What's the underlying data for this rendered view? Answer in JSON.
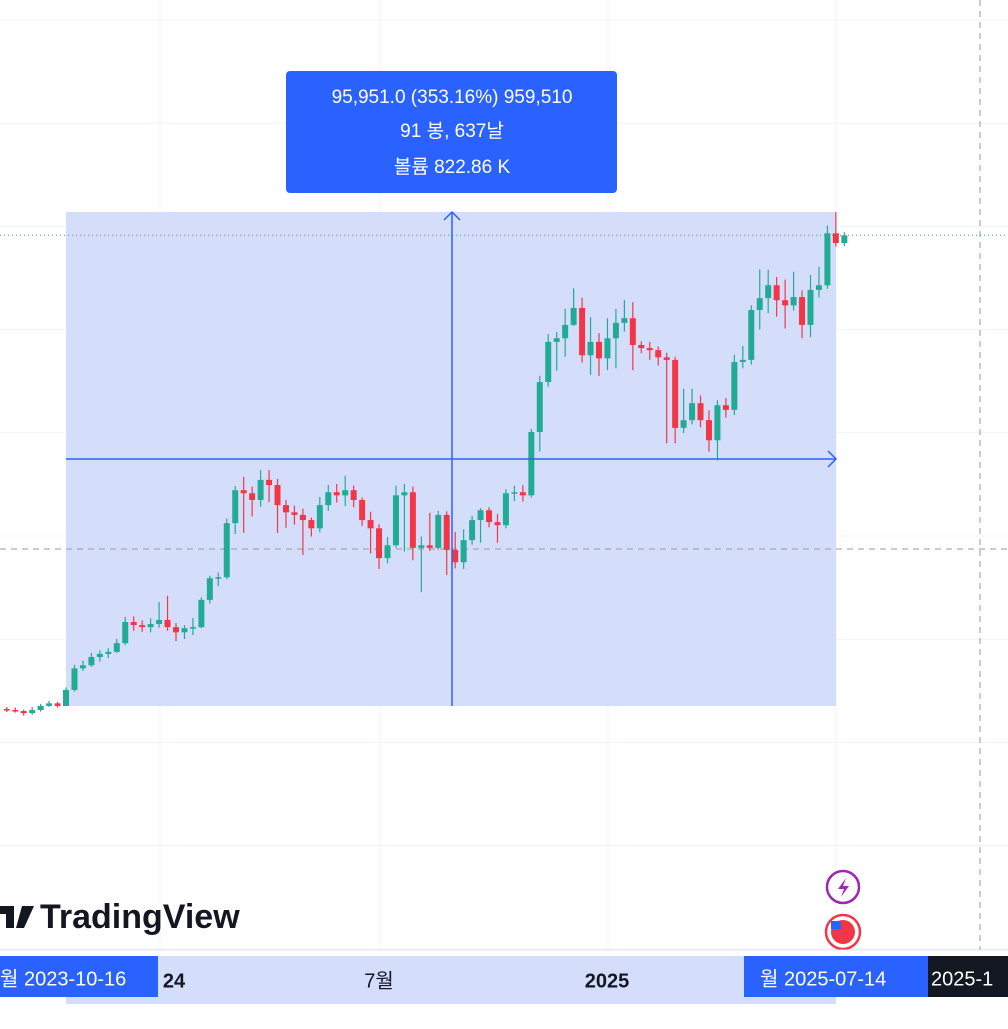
{
  "chart_data": {
    "type": "candlestick",
    "open": [
      26600,
      26400,
      26200,
      25800,
      26400,
      27200,
      27700,
      27200,
      30300,
      34500,
      35100,
      36700,
      37300,
      37700,
      39400,
      43500,
      42900,
      42500,
      43100,
      43900,
      42500,
      41500,
      42300,
      42500,
      47800,
      52000,
      52200,
      62700,
      69100,
      68500,
      67200,
      71100,
      70100,
      66200,
      64800,
      64300,
      63300,
      61700,
      66200,
      68700,
      68100,
      69100,
      67200,
      63300,
      61700,
      55900,
      58400,
      68100,
      68700,
      57900,
      58400,
      57900,
      64300,
      57500,
      55100,
      59400,
      63300,
      65200,
      62900,
      62300,
      68500,
      68700,
      68100,
      80400,
      90100,
      97900,
      98600,
      101200,
      104500,
      95300,
      97900,
      94700,
      98600,
      101600,
      102500,
      97300,
      96700,
      96300,
      94900,
      94400,
      81200,
      82700,
      86000,
      82700,
      78800,
      85600,
      84700,
      94000,
      94400,
      104100,
      106400,
      108900,
      106000,
      105000,
      106600,
      101200,
      108000,
      108900,
      119000,
      117100
    ],
    "high": [
      27000,
      26900,
      26500,
      27000,
      27600,
      28200,
      28000,
      30800,
      35200,
      36000,
      37500,
      38000,
      38400,
      40200,
      44500,
      44600,
      43800,
      44200,
      47400,
      48600,
      43300,
      42900,
      44300,
      48300,
      52500,
      53100,
      63600,
      69900,
      71700,
      69800,
      73000,
      73000,
      71300,
      67200,
      66100,
      65500,
      63800,
      67800,
      70100,
      70300,
      71900,
      70000,
      67700,
      64900,
      62500,
      60000,
      70000,
      70300,
      69800,
      60100,
      64700,
      65100,
      65000,
      61000,
      61500,
      64100,
      65600,
      65800,
      64500,
      69300,
      70000,
      70100,
      81000,
      91300,
      99400,
      99800,
      104300,
      108300,
      106500,
      102700,
      99600,
      102500,
      104300,
      106000,
      105600,
      98000,
      97900,
      97000,
      95800,
      95000,
      88800,
      88800,
      87500,
      84600,
      86600,
      87000,
      95400,
      97100,
      105000,
      112000,
      111900,
      110500,
      110000,
      111500,
      107900,
      110900,
      112500,
      120500,
      123100,
      119200
    ],
    "low": [
      26000,
      25900,
      25300,
      25500,
      26100,
      27000,
      26900,
      27170,
      30000,
      34000,
      34800,
      35800,
      36500,
      37500,
      39000,
      41800,
      41600,
      41500,
      42400,
      41800,
      39800,
      40200,
      41000,
      42300,
      47100,
      50500,
      51800,
      60600,
      60800,
      64000,
      65900,
      66800,
      60800,
      61800,
      62400,
      56500,
      60100,
      60900,
      65100,
      66700,
      66000,
      65800,
      62200,
      56800,
      53800,
      54900,
      57900,
      57200,
      55500,
      49300,
      57300,
      57500,
      52600,
      53900,
      53800,
      58500,
      58900,
      61900,
      58900,
      61700,
      67000,
      66900,
      67700,
      76600,
      89200,
      92300,
      95000,
      101000,
      93900,
      91500,
      91300,
      92400,
      92800,
      99900,
      92400,
      95700,
      94400,
      93300,
      78200,
      78200,
      80200,
      81900,
      81300,
      76600,
      74900,
      83200,
      83700,
      92800,
      93500,
      100300,
      103500,
      102800,
      100500,
      104000,
      98600,
      98800,
      106500,
      108200,
      116400,
      116500
    ],
    "close": [
      26400,
      26200,
      25800,
      26400,
      27200,
      27700,
      27200,
      30300,
      34500,
      35100,
      36700,
      37300,
      37700,
      39400,
      43500,
      42900,
      42500,
      43100,
      43900,
      42500,
      41500,
      42300,
      42500,
      47800,
      52000,
      52200,
      62700,
      69100,
      68500,
      67200,
      71100,
      70100,
      66200,
      64800,
      64300,
      63300,
      61700,
      66200,
      68700,
      68100,
      69100,
      67200,
      63300,
      61700,
      55900,
      58400,
      68100,
      68700,
      57900,
      58400,
      57900,
      64300,
      57500,
      55100,
      59400,
      63300,
      65200,
      62900,
      62300,
      68500,
      68700,
      68100,
      80400,
      90100,
      97900,
      98600,
      101200,
      104500,
      95300,
      97900,
      94700,
      98600,
      101600,
      102500,
      97300,
      96700,
      96300,
      94900,
      94400,
      81200,
      82700,
      86000,
      82700,
      78800,
      85600,
      84700,
      94000,
      94400,
      104100,
      106400,
      108900,
      106000,
      105000,
      106600,
      101200,
      108000,
      108900,
      119000,
      117100,
      118600
    ],
    "up_color": "#22ab94",
    "down_color": "#f23645",
    "ylim": [
      -20200,
      164300
    ]
  },
  "measure": {
    "lines": [
      "95,951.0 (353.16%) 959,510",
      "91 봉, 637날",
      "볼륨 822.86 K"
    ]
  },
  "time_axis": {
    "labels": [
      "24",
      "7월",
      "2025"
    ],
    "start_label": "월 2023-10-16",
    "end_label": "월 2025-07-14",
    "next_label": "2025-1"
  },
  "brand": "TradingView"
}
